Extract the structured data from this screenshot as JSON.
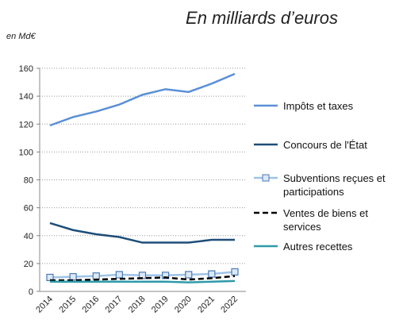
{
  "chart_data": {
    "type": "line",
    "title": "En milliards d’euros",
    "subtitle": "en Md€",
    "categories": [
      "2014",
      "2015",
      "2016",
      "2017",
      "2018",
      "2019",
      "2020",
      "2021",
      "2022"
    ],
    "ylim": [
      0,
      160
    ],
    "yticks": [
      0,
      20,
      40,
      60,
      80,
      100,
      120,
      140,
      160
    ],
    "grid": true,
    "series": [
      {
        "name": "Impôts et taxes",
        "color": "#5b8fd6",
        "values": [
          119,
          125,
          129,
          134,
          141,
          145,
          143,
          149,
          156
        ]
      },
      {
        "name": "Concours de l'État",
        "color": "#1f4e79",
        "values": [
          49,
          44,
          41,
          39,
          35,
          35,
          35,
          37,
          37
        ]
      },
      {
        "name": "Subventions reçues et participations",
        "color": "#9dc3e6",
        "values": [
          10,
          10.5,
          11,
          12,
          11.5,
          11.5,
          12,
          12.5,
          14
        ]
      },
      {
        "name": "Ventes de biens et services",
        "color": "#000000",
        "values": [
          8,
          8,
          8.5,
          9,
          9.5,
          10,
          8.5,
          9.5,
          11
        ]
      },
      {
        "name": "Autres recettes",
        "color": "#2e9aa8",
        "values": [
          7,
          7,
          7,
          7,
          7,
          7,
          6.5,
          7,
          7.5
        ]
      }
    ]
  }
}
